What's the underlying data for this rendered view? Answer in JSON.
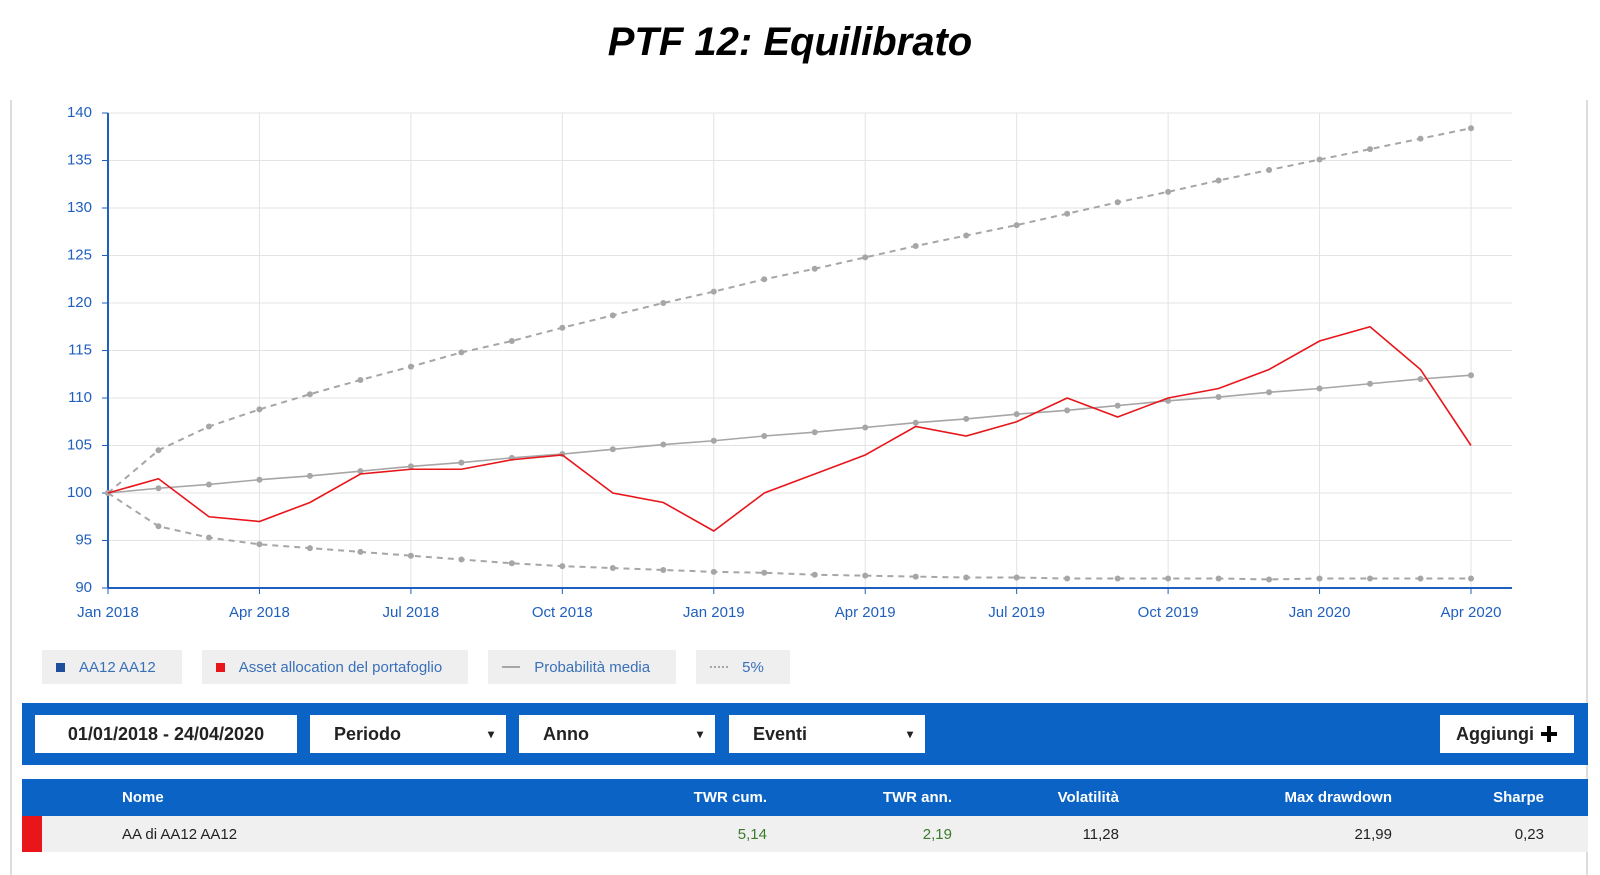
{
  "header": {
    "title": "PTF 12: Equilibrato"
  },
  "chart_data": {
    "type": "line",
    "x": [
      "2018-01",
      "2018-02",
      "2018-03",
      "2018-04",
      "2018-05",
      "2018-06",
      "2018-07",
      "2018-08",
      "2018-09",
      "2018-10",
      "2018-11",
      "2018-12",
      "2019-01",
      "2019-02",
      "2019-03",
      "2019-04",
      "2019-05",
      "2019-06",
      "2019-07",
      "2019-08",
      "2019-09",
      "2019-10",
      "2019-11",
      "2019-12",
      "2020-01",
      "2020-02",
      "2020-03",
      "2020-04"
    ],
    "series": [
      {
        "name": "Asset allocation del portafoglio",
        "color": "#e8161b",
        "style": "solid",
        "markers": false,
        "values": [
          100,
          101.5,
          97.5,
          97,
          99,
          102,
          102.5,
          102.5,
          103.5,
          104,
          100,
          99,
          96,
          100,
          102,
          104,
          107,
          106,
          107.5,
          110,
          108,
          110,
          111,
          113,
          116,
          117.5,
          113,
          105
        ]
      },
      {
        "name": "Probabilità media",
        "color": "#a6a6a6",
        "style": "solid",
        "markers": true,
        "values": [
          100,
          100.5,
          100.9,
          101.4,
          101.8,
          102.3,
          102.8,
          103.2,
          103.7,
          104.1,
          104.6,
          105.1,
          105.5,
          106.0,
          106.4,
          106.9,
          107.4,
          107.8,
          108.3,
          108.7,
          109.2,
          109.7,
          110.1,
          110.6,
          111.0,
          111.5,
          112.0,
          112.4
        ]
      }
    ],
    "band": {
      "name": "5%",
      "color": "#a6a6a6",
      "style": "dashed",
      "upper": [
        100,
        104.5,
        107,
        108.8,
        110.4,
        111.9,
        113.3,
        114.8,
        116,
        117.4,
        118.7,
        120,
        121.2,
        122.5,
        123.6,
        124.8,
        126,
        127.1,
        128.2,
        129.4,
        130.6,
        131.7,
        132.9,
        134,
        135.1,
        136.2,
        137.3,
        138.4
      ],
      "lower": [
        100,
        96.5,
        95.3,
        94.6,
        94.2,
        93.8,
        93.4,
        93.0,
        92.6,
        92.3,
        92.1,
        91.9,
        91.7,
        91.6,
        91.4,
        91.3,
        91.2,
        91.1,
        91.1,
        91.0,
        91.0,
        91.0,
        91.0,
        90.9,
        91.0,
        91.0,
        91.0,
        91.0
      ]
    },
    "hidden_series": [
      {
        "name": "AA12 AA12",
        "color": "#1f4e9c"
      }
    ],
    "ylim": [
      90,
      140
    ],
    "yticks": [
      90,
      95,
      100,
      105,
      110,
      115,
      120,
      125,
      130,
      135,
      140
    ],
    "xlim": [
      "2018-01",
      "2020-04"
    ],
    "xticks": [
      {
        "value": "2018-01",
        "label": "Jan 2018"
      },
      {
        "value": "2018-04",
        "label": "Apr 2018"
      },
      {
        "value": "2018-07",
        "label": "Jul 2018"
      },
      {
        "value": "2018-10",
        "label": "Oct 2018"
      },
      {
        "value": "2019-01",
        "label": "Jan 2019"
      },
      {
        "value": "2019-04",
        "label": "Apr 2019"
      },
      {
        "value": "2019-07",
        "label": "Jul 2019"
      },
      {
        "value": "2019-10",
        "label": "Oct 2019"
      },
      {
        "value": "2020-01",
        "label": "Jan 2020"
      },
      {
        "value": "2020-04",
        "label": "Apr 2020"
      }
    ],
    "grid": true
  },
  "controls": {
    "date_range": "01/01/2018 - 24/04/2020",
    "selects": [
      "Periodo",
      "Anno",
      "Eventi"
    ],
    "button": "Aggiungi"
  },
  "table": {
    "headers": [
      "Nome",
      "TWR cum.",
      "TWR ann.",
      "Volatilità",
      "Max drawdown",
      "Sharpe"
    ],
    "rows": [
      [
        "AA di AA12 AA12",
        "5,14",
        "2,19",
        "11,28",
        "21,99",
        "0,23"
      ]
    ]
  }
}
